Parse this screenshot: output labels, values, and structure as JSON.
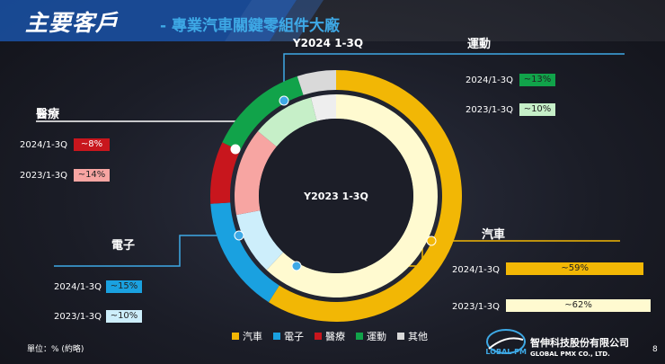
{
  "header": {
    "title": "主要客戶",
    "subtitle": "- 專業汽車關鍵零組件大廠"
  },
  "chart_data": {
    "type": "pie",
    "subtype": "double-donut",
    "outer_ring_label": "Y2024 1-3Q",
    "inner_ring_label": "Y2023 1-3Q",
    "categories": [
      "汽車",
      "電子",
      "醫療",
      "運動",
      "其他"
    ],
    "colors": [
      "#f2b705",
      "#1aa1e0",
      "#c8161d",
      "#11a34a",
      "#d9d9d9"
    ],
    "inner_colors": [
      "#fffad0",
      "#cdeefb",
      "#f7a5a2",
      "#c6efc8",
      "#eeeeee"
    ],
    "series": [
      {
        "name": "2024/1-3Q",
        "ring": "outer",
        "values": [
          59,
          15,
          8,
          13,
          5
        ]
      },
      {
        "name": "2023/1-3Q",
        "ring": "inner",
        "values": [
          62,
          10,
          14,
          10,
          4
        ]
      }
    ],
    "callouts": [
      {
        "category": "運動",
        "rows": [
          {
            "period": "2024/1-3Q",
            "label": "~13%",
            "value": 13
          },
          {
            "period": "2023/1-3Q",
            "label": "~10%",
            "value": 10
          }
        ]
      },
      {
        "category": "醫療",
        "rows": [
          {
            "period": "2024/1-3Q",
            "label": "~8%",
            "value": 8
          },
          {
            "period": "2023/1-3Q",
            "label": "~14%",
            "value": 14
          }
        ]
      },
      {
        "category": "電子",
        "rows": [
          {
            "period": "2024/1-3Q",
            "label": "~15%",
            "value": 15
          },
          {
            "period": "2023/1-3Q",
            "label": "~10%",
            "value": 10
          }
        ]
      },
      {
        "category": "汽車",
        "rows": [
          {
            "period": "2024/1-3Q",
            "label": "~59%",
            "value": 59
          },
          {
            "period": "2023/1-3Q",
            "label": "~62%",
            "value": 62
          }
        ]
      }
    ],
    "unit_note": "單位：% (約略)"
  },
  "footer": {
    "logo_text": "GLOBAL PMX",
    "company_zh": "智伸科技股份有限公司",
    "company_en": "GLOBAL PMX CO., LTD.",
    "page_number": "8"
  }
}
